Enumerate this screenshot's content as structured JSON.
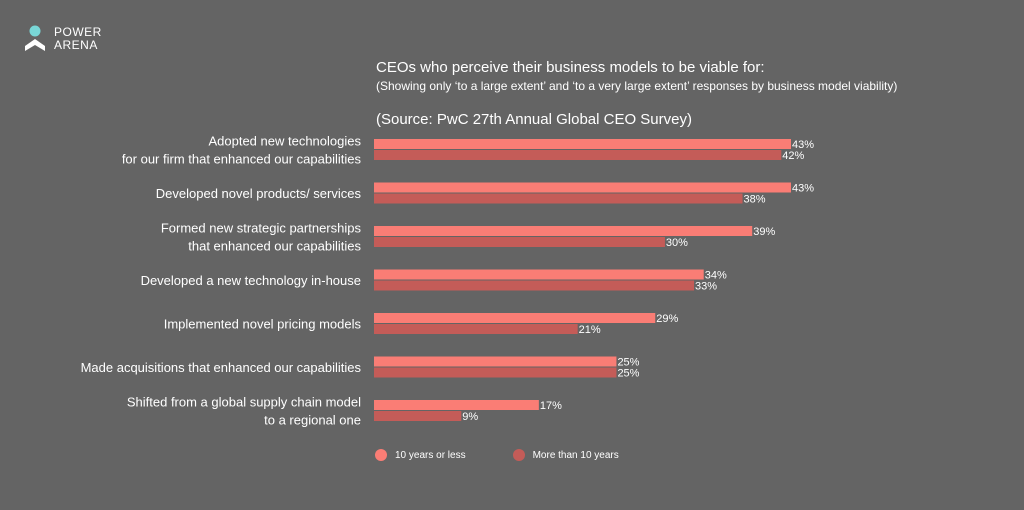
{
  "brand": {
    "line1": "POWER",
    "line2": "ARENA",
    "logo_icon": "power-arena-logo-icon",
    "logo_top_color": "#79d6d6",
    "logo_bottom_color": "#ffffff"
  },
  "header": {
    "title": "CEOs who perceive their business models to be viable for:",
    "subtitle": "(Showing only ‘to a large extent’ and ‘to a very large extent’ responses by business model viability)",
    "source": "(Source: PwC 27th Annual Global CEO Survey)"
  },
  "colors": {
    "background": "#646464",
    "series_1": "#fa7d75",
    "series_2": "#c45c58",
    "text": "#ffffff"
  },
  "legend": {
    "items": [
      {
        "label": "10 years or less",
        "color": "#fa7d75"
      },
      {
        "label": "More than 10 years",
        "color": "#c45c58"
      }
    ]
  },
  "chart_data": {
    "type": "bar",
    "orientation": "horizontal",
    "title": "CEOs who perceive their business models to be viable for:",
    "xlabel": "",
    "ylabel": "",
    "xlim": [
      0,
      43
    ],
    "unit": "%",
    "grid": false,
    "legend_position": "bottom",
    "categories": [
      [
        "Adopted new technologies",
        "for our firm that enhanced our capabilities"
      ],
      [
        "Developed novel products/ services"
      ],
      [
        "Formed new strategic partnerships",
        "that enhanced our capabilities"
      ],
      [
        "Developed a new technology in-house"
      ],
      [
        "Implemented novel pricing models"
      ],
      [
        "Made acquisitions that enhanced our capabilities"
      ],
      [
        "Shifted from a global supply chain model",
        "to a regional one"
      ]
    ],
    "series": [
      {
        "name": "10 years or less",
        "values": [
          43,
          43,
          39,
          34,
          29,
          25,
          17
        ]
      },
      {
        "name": "More than 10 years",
        "values": [
          42,
          38,
          30,
          33,
          21,
          25,
          9
        ]
      }
    ]
  }
}
